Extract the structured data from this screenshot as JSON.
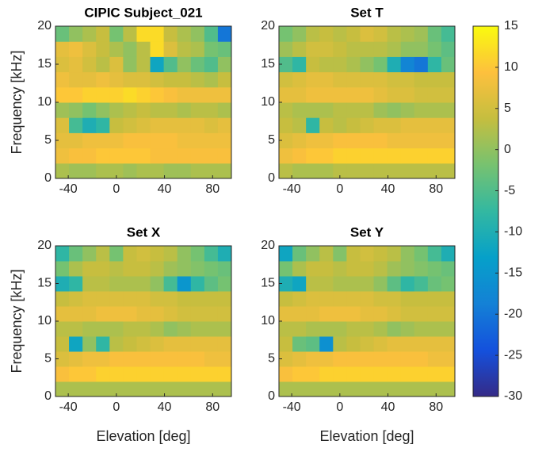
{
  "chart_data": [
    {
      "type": "heatmap",
      "title": "CIPIC Subject_021",
      "ylabel": "Frequency [kHz]",
      "x": [
        -45,
        -33.75,
        -22.5,
        -11.25,
        0,
        11.25,
        22.5,
        33.75,
        45,
        56.25,
        67.5,
        78.75,
        90
      ],
      "y": [
        1,
        3,
        5,
        7,
        9,
        11,
        13,
        15,
        17,
        19
      ],
      "values": [
        [
          2,
          1,
          1,
          2,
          2,
          1,
          2,
          2,
          1,
          1,
          2,
          2,
          2
        ],
        [
          8,
          9,
          9,
          10,
          10,
          10,
          10,
          9,
          9,
          9,
          9,
          9,
          9
        ],
        [
          7,
          7,
          8,
          8,
          8,
          9,
          9,
          9,
          9,
          8,
          8,
          8,
          8
        ],
        [
          6,
          -6,
          -10,
          -8,
          4,
          5,
          6,
          7,
          7,
          7,
          7,
          6,
          7
        ],
        [
          1,
          0,
          -2,
          0,
          2,
          3,
          4,
          3,
          3,
          2,
          3,
          3,
          2
        ],
        [
          10,
          10,
          11,
          11,
          11,
          12,
          11,
          10,
          9,
          8,
          8,
          8,
          8
        ],
        [
          8,
          7,
          7,
          8,
          7,
          6,
          6,
          5,
          4,
          4,
          3,
          2,
          4
        ],
        [
          6,
          7,
          5,
          3,
          6,
          0,
          3,
          -12,
          -5,
          0,
          -3,
          -5,
          0
        ],
        [
          7,
          8,
          6,
          4,
          2,
          0,
          3,
          12,
          6,
          3,
          2,
          -2,
          -3
        ],
        [
          -3,
          0,
          2,
          4,
          -2,
          3,
          12,
          12,
          4,
          2,
          0,
          -5,
          -20
        ]
      ],
      "xlim": [
        -50.625,
        95.625
      ],
      "ylim": [
        0,
        20
      ],
      "xticks": [
        -40,
        0,
        40,
        80
      ],
      "yticks": [
        0,
        5,
        10,
        15,
        20
      ]
    },
    {
      "type": "heatmap",
      "title": "Set T",
      "x": [
        -45,
        -33.75,
        -22.5,
        -11.25,
        0,
        11.25,
        22.5,
        33.75,
        45,
        56.25,
        67.5,
        78.75,
        90
      ],
      "y": [
        1,
        3,
        5,
        7,
        9,
        11,
        13,
        15,
        17,
        19
      ],
      "values": [
        [
          3,
          2,
          2,
          2,
          3,
          3,
          3,
          3,
          3,
          3,
          3,
          3,
          3
        ],
        [
          8,
          9,
          10,
          10,
          11,
          11,
          11,
          11,
          11,
          11,
          11,
          11,
          11
        ],
        [
          6,
          7,
          8,
          8,
          9,
          9,
          9,
          9,
          8,
          8,
          8,
          8,
          8
        ],
        [
          4,
          3,
          -8,
          4,
          3,
          4,
          5,
          6,
          6,
          7,
          7,
          7,
          7
        ],
        [
          3,
          2,
          2,
          2,
          3,
          3,
          3,
          1,
          0,
          1,
          2,
          2,
          2
        ],
        [
          7,
          7,
          8,
          8,
          8,
          8,
          8,
          7,
          6,
          6,
          5,
          5,
          5
        ],
        [
          5,
          6,
          7,
          7,
          6,
          6,
          6,
          6,
          5,
          5,
          4,
          4,
          4
        ],
        [
          -5,
          -8,
          4,
          3,
          3,
          2,
          0,
          -2,
          -10,
          -18,
          -20,
          -8,
          -3
        ],
        [
          1,
          3,
          5,
          5,
          4,
          3,
          3,
          3,
          2,
          0,
          0,
          -2,
          -4
        ],
        [
          -2,
          0,
          3,
          4,
          3,
          4,
          6,
          5,
          3,
          2,
          1,
          -3,
          -6
        ]
      ],
      "xlim": [
        -50.625,
        95.625
      ],
      "ylim": [
        0,
        20
      ],
      "xticks": [
        -40,
        0,
        40,
        80
      ],
      "yticks": [
        0,
        5,
        10,
        15,
        20
      ]
    },
    {
      "type": "heatmap",
      "title": "Set X",
      "xlabel": "Elevation [deg]",
      "ylabel": "Frequency [kHz]",
      "x": [
        -45,
        -33.75,
        -22.5,
        -11.25,
        0,
        11.25,
        22.5,
        33.75,
        45,
        56.25,
        67.5,
        78.75,
        90
      ],
      "y": [
        1,
        3,
        5,
        7,
        9,
        11,
        13,
        15,
        17,
        19
      ],
      "values": [
        [
          2,
          2,
          2,
          2,
          2,
          2,
          2,
          2,
          2,
          2,
          2,
          2,
          2
        ],
        [
          9,
          10,
          10,
          11,
          11,
          11,
          11,
          11,
          11,
          11,
          11,
          11,
          11
        ],
        [
          6,
          7,
          8,
          8,
          9,
          9,
          9,
          9,
          9,
          9,
          9,
          8,
          8
        ],
        [
          4,
          -12,
          0,
          -8,
          3,
          4,
          5,
          6,
          7,
          7,
          7,
          7,
          7
        ],
        [
          3,
          3,
          2,
          2,
          2,
          3,
          3,
          2,
          0,
          1,
          2,
          2,
          2
        ],
        [
          7,
          7,
          7,
          8,
          8,
          8,
          7,
          7,
          6,
          5,
          5,
          5,
          5
        ],
        [
          4,
          5,
          6,
          6,
          6,
          6,
          6,
          5,
          5,
          4,
          4,
          4,
          4
        ],
        [
          -10,
          -8,
          3,
          3,
          2,
          2,
          2,
          0,
          -6,
          -15,
          -8,
          -4,
          -2
        ],
        [
          -2,
          2,
          4,
          4,
          3,
          4,
          4,
          3,
          1,
          0,
          -1,
          -2,
          -3
        ],
        [
          -8,
          -3,
          0,
          3,
          -2,
          4,
          5,
          4,
          3,
          0,
          -2,
          -6,
          -10
        ]
      ],
      "xlim": [
        -50.625,
        95.625
      ],
      "ylim": [
        0,
        20
      ],
      "xticks": [
        -40,
        0,
        40,
        80
      ],
      "yticks": [
        0,
        5,
        10,
        15,
        20
      ]
    },
    {
      "type": "heatmap",
      "title": "Set Y",
      "xlabel": "Elevation [deg]",
      "x": [
        -45,
        -33.75,
        -22.5,
        -11.25,
        0,
        11.25,
        22.5,
        33.75,
        45,
        56.25,
        67.5,
        78.75,
        90
      ],
      "y": [
        1,
        3,
        5,
        7,
        9,
        11,
        13,
        15,
        17,
        19
      ],
      "values": [
        [
          2,
          2,
          2,
          2,
          2,
          2,
          2,
          2,
          2,
          2,
          2,
          2,
          2
        ],
        [
          9,
          10,
          10,
          11,
          11,
          11,
          11,
          11,
          11,
          11,
          11,
          11,
          11
        ],
        [
          6,
          7,
          8,
          8,
          9,
          9,
          9,
          9,
          9,
          9,
          9,
          8,
          8
        ],
        [
          4,
          -3,
          -4,
          -16,
          3,
          4,
          5,
          6,
          7,
          7,
          7,
          7,
          7
        ],
        [
          3,
          3,
          2,
          2,
          2,
          3,
          3,
          2,
          0,
          1,
          2,
          2,
          2
        ],
        [
          7,
          7,
          7,
          8,
          8,
          8,
          7,
          7,
          6,
          5,
          5,
          5,
          5
        ],
        [
          4,
          5,
          6,
          6,
          6,
          6,
          6,
          5,
          5,
          4,
          4,
          4,
          4
        ],
        [
          -10,
          -12,
          3,
          3,
          2,
          2,
          2,
          0,
          -4,
          -8,
          -6,
          -3,
          -2
        ],
        [
          -2,
          2,
          4,
          4,
          3,
          4,
          4,
          3,
          1,
          0,
          -1,
          -2,
          -3
        ],
        [
          -12,
          -3,
          0,
          3,
          -1,
          4,
          5,
          4,
          3,
          0,
          -2,
          -6,
          -10
        ]
      ],
      "xlim": [
        -50.625,
        95.625
      ],
      "ylim": [
        0,
        20
      ],
      "xticks": [
        -40,
        0,
        40,
        80
      ],
      "yticks": [
        0,
        5,
        10,
        15,
        20
      ]
    },
    {
      "type": "colorbar",
      "clim": [
        -30,
        15
      ],
      "ticks": [
        -30,
        -25,
        -20,
        -15,
        -10,
        -5,
        0,
        5,
        10,
        15
      ]
    }
  ]
}
